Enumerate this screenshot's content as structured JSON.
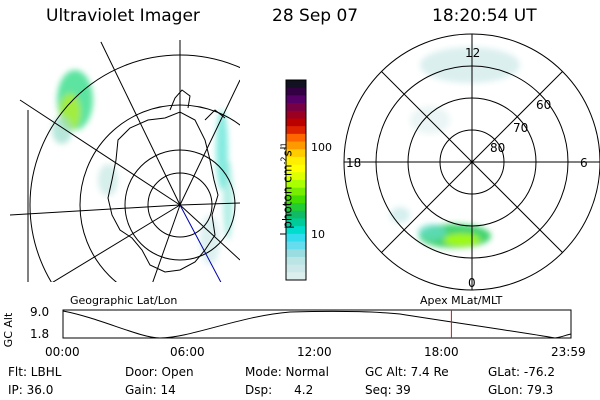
{
  "header": {
    "title": "Ultraviolet Imager",
    "date": "28 Sep 07",
    "time": "18:20:54 UT"
  },
  "colorbar": {
    "label": "photon cm",
    "label_exp1": "-2",
    "label_mid": "s",
    "label_exp2": "-1",
    "ticks": [
      "100",
      "10"
    ],
    "colors": [
      "#111122",
      "#330044",
      "#550066",
      "#770044",
      "#990022",
      "#bb0000",
      "#dd2200",
      "#ff6600",
      "#ff9900",
      "#ffcc00",
      "#ffee00",
      "#ffff00",
      "#ddff00",
      "#aaff00",
      "#77ee00",
      "#44dd00",
      "#22cc33",
      "#11bb66",
      "#00cc99",
      "#00ddcc",
      "#33ddee",
      "#66ddee",
      "#99dde0",
      "#bbe4e4",
      "#cce8e8",
      "#ddeeee"
    ]
  },
  "polar_plot": {
    "lat_labels": [
      "60",
      "70",
      "80"
    ],
    "mlt_labels": {
      "top": "12",
      "left": "18",
      "right": "6",
      "bottom": "0"
    }
  },
  "timeline": {
    "ylabel": "GC Alt",
    "ymax_label": "9.0",
    "ymin_label": "1.8",
    "left_title": "Geographic Lat/Lon",
    "right_title": "Apex MLat/MLT",
    "ticks": [
      "00:00",
      "06:00",
      "12:00",
      "18:00",
      "23:59"
    ],
    "current_time_hours": 18.35,
    "marker_color": "#ff0000"
  },
  "info": {
    "filter": "Flt: LBHL",
    "door": "Door: Open",
    "mode": "Mode: Normal",
    "gc_alt": "GC Alt: 7.4 Re",
    "glat": "GLat: -76.2",
    "ip": "IP: 36.0",
    "gain": "Gain: 14",
    "dsp_label": "Dsp:",
    "dsp_value": "4.2",
    "seq": "Seq: 39",
    "glon": "GLon: 79.3"
  }
}
